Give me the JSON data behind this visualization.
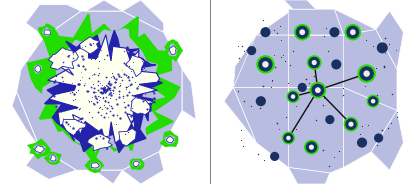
{
  "fig_width": 4.2,
  "fig_height": 1.84,
  "dpi": 100,
  "bg_color": "#ffffff",
  "left_map": {
    "bg_color": "#b8bce0",
    "region_edge": "#ffffff",
    "green_color": "#22dd00",
    "blue_color": "#2222aa",
    "cream_color": "#fffff0",
    "xlim": [
      -1.0,
      1.0
    ],
    "ylim": [
      -1.0,
      1.0
    ]
  },
  "right_map": {
    "bg_color": "#b8bce0",
    "region_edge": "#ffffff",
    "green_ring_color": "#22dd00",
    "node_dark": "#1a3060",
    "node_white": "#e8f0f0",
    "line_color": "#111111",
    "dot_color": "#111111",
    "xlim": [
      -1.0,
      1.0
    ],
    "ylim": [
      -1.0,
      1.0
    ]
  }
}
